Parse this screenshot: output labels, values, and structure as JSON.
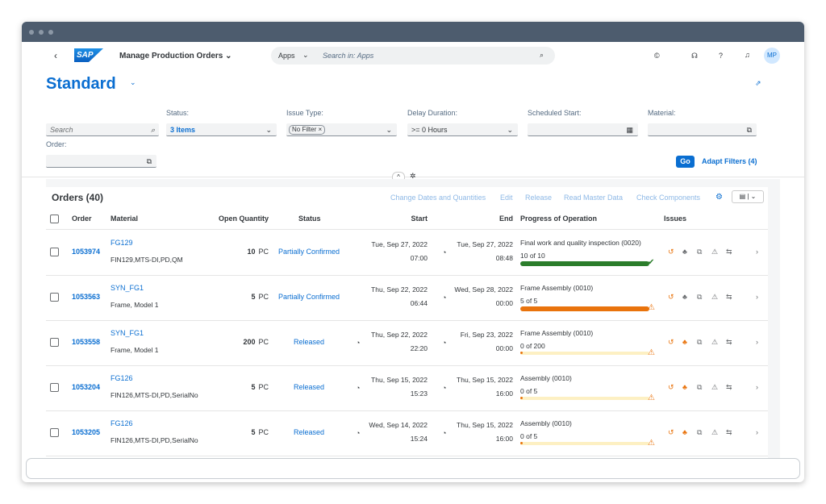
{
  "shell": {
    "logo": "SAP",
    "app_title": "Manage Production Orders",
    "search_scope": "Apps",
    "search_placeholder": "Search in: Apps",
    "avatar": "MP"
  },
  "variant": "Standard",
  "filter_bar": {
    "search_placeholder": "Search",
    "filters": [
      {
        "label": "Status:",
        "value": "3 Items"
      },
      {
        "label": "Issue Type:",
        "value": "No Filter"
      },
      {
        "label": "Delay Duration:",
        "value": ">= 0 Hours"
      },
      {
        "label": "Scheduled Start:"
      },
      {
        "label": "Material:"
      },
      {
        "label": "Order:"
      }
    ],
    "go": "Go",
    "adapt": "Adapt Filters (4)"
  },
  "table": {
    "title": "Orders (40)",
    "actions": [
      "Change Dates and Quantities",
      "Edit",
      "Release",
      "Read Master Data",
      "Check Components"
    ],
    "columns": [
      "Order",
      "Material",
      "Open Quantity",
      "Status",
      "Start",
      "End",
      "Progress of Operation",
      "Issues"
    ],
    "rows": [
      {
        "order": "1053974",
        "material": "FG129",
        "material_text": "FIN129,MTS-DI,PD,QM",
        "quantity": 10,
        "unit": "PC",
        "status": "Partially Confirmed",
        "start_date": "Tue, Sep 27, 2022",
        "start_time": "07:00",
        "end_date": "Tue, Sep 27, 2022",
        "end_time": "08:48",
        "operation": "Final work and quality inspection (0020)",
        "progress": "10 of 10"
      },
      {
        "order": "1053563",
        "material": "SYN_FG1",
        "material_text": "Frame, Model 1",
        "quantity": 5,
        "unit": "PC",
        "status": "Partially Confirmed",
        "start_date": "Thu, Sep 22, 2022",
        "start_time": "06:44",
        "end_date": "Wed, Sep 28, 2022",
        "end_time": "00:00",
        "operation": "Frame Assembly (0010)",
        "progress": "5 of 5"
      },
      {
        "order": "1053558",
        "material": "SYN_FG1",
        "material_text": "Frame, Model 1",
        "quantity": 200,
        "unit": "PC",
        "status": "Released",
        "start_date": "Thu, Sep 22, 2022",
        "start_time": "22:20",
        "end_date": "Fri, Sep 23, 2022",
        "end_time": "00:00",
        "operation": "Frame Assembly (0010)",
        "progress": "0 of 200"
      },
      {
        "order": "1053204",
        "material": "FG126",
        "material_text": "FIN126,MTS-DI,PD,SerialNo",
        "quantity": 5,
        "unit": "PC",
        "status": "Released",
        "start_date": "Thu, Sep 15, 2022",
        "start_time": "15:23",
        "end_date": "Thu, Sep 15, 2022",
        "end_time": "16:00",
        "operation": "Assembly (0010)",
        "progress": "0 of 5"
      },
      {
        "order": "1053205",
        "material": "FG126",
        "material_text": "FIN126,MTS-DI,PD,SerialNo",
        "quantity": 5,
        "unit": "PC",
        "status": "Released",
        "start_date": "Wed, Sep 14, 2022",
        "start_time": "15:24",
        "end_date": "Thu, Sep 15, 2022",
        "end_time": "16:00",
        "operation": "Assembly (0010)",
        "progress": "0 of 5"
      }
    ]
  }
}
